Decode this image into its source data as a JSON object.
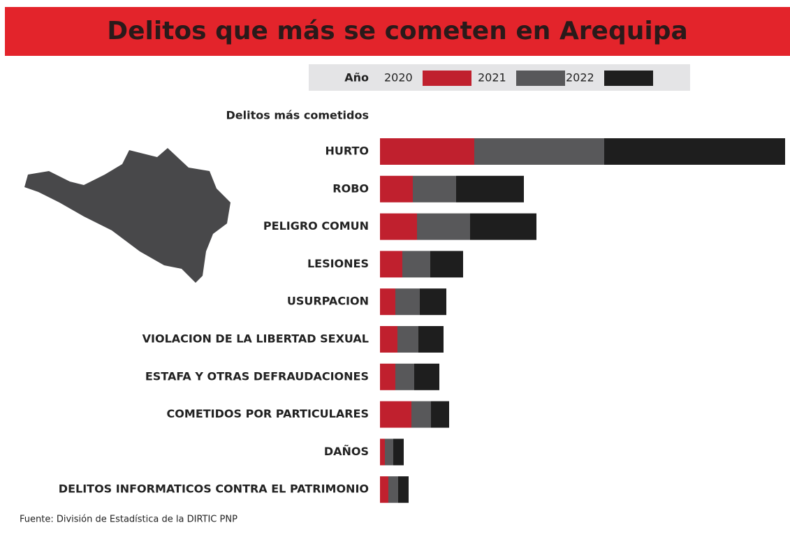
{
  "chart_data": {
    "type": "stacked-bar-horizontal",
    "title": "Delitos que más se cometen en Arequipa",
    "legend_title": "Año",
    "y_label": "Delitos más cometidos",
    "source": "Fuente: División de Estadística de la DIRTIC PNP",
    "categories": [
      "HURTO",
      "ROBO",
      "PELIGRO COMUN",
      "LESIONES",
      "USURPACION",
      "VIOLACION DE LA LIBERTAD SEXUAL",
      "ESTAFA Y OTRAS DEFRAUDACIONES",
      "COMETIDOS POR PARTICULARES",
      "DAÑOS",
      "DELITOS INFORMATICOS CONTRA EL PATRIMONIO"
    ],
    "series": [
      {
        "name": "2020",
        "color": "#c0202e",
        "values": [
          135,
          47,
          53,
          32,
          22,
          25,
          22,
          45,
          7,
          12
        ]
      },
      {
        "name": "2021",
        "color": "#58585a",
        "values": [
          186,
          62,
          76,
          40,
          35,
          30,
          27,
          28,
          12,
          14
        ]
      },
      {
        "name": "2022",
        "color": "#1e1e1e",
        "values": [
          259,
          97,
          95,
          47,
          38,
          36,
          36,
          26,
          15,
          15
        ]
      }
    ]
  }
}
